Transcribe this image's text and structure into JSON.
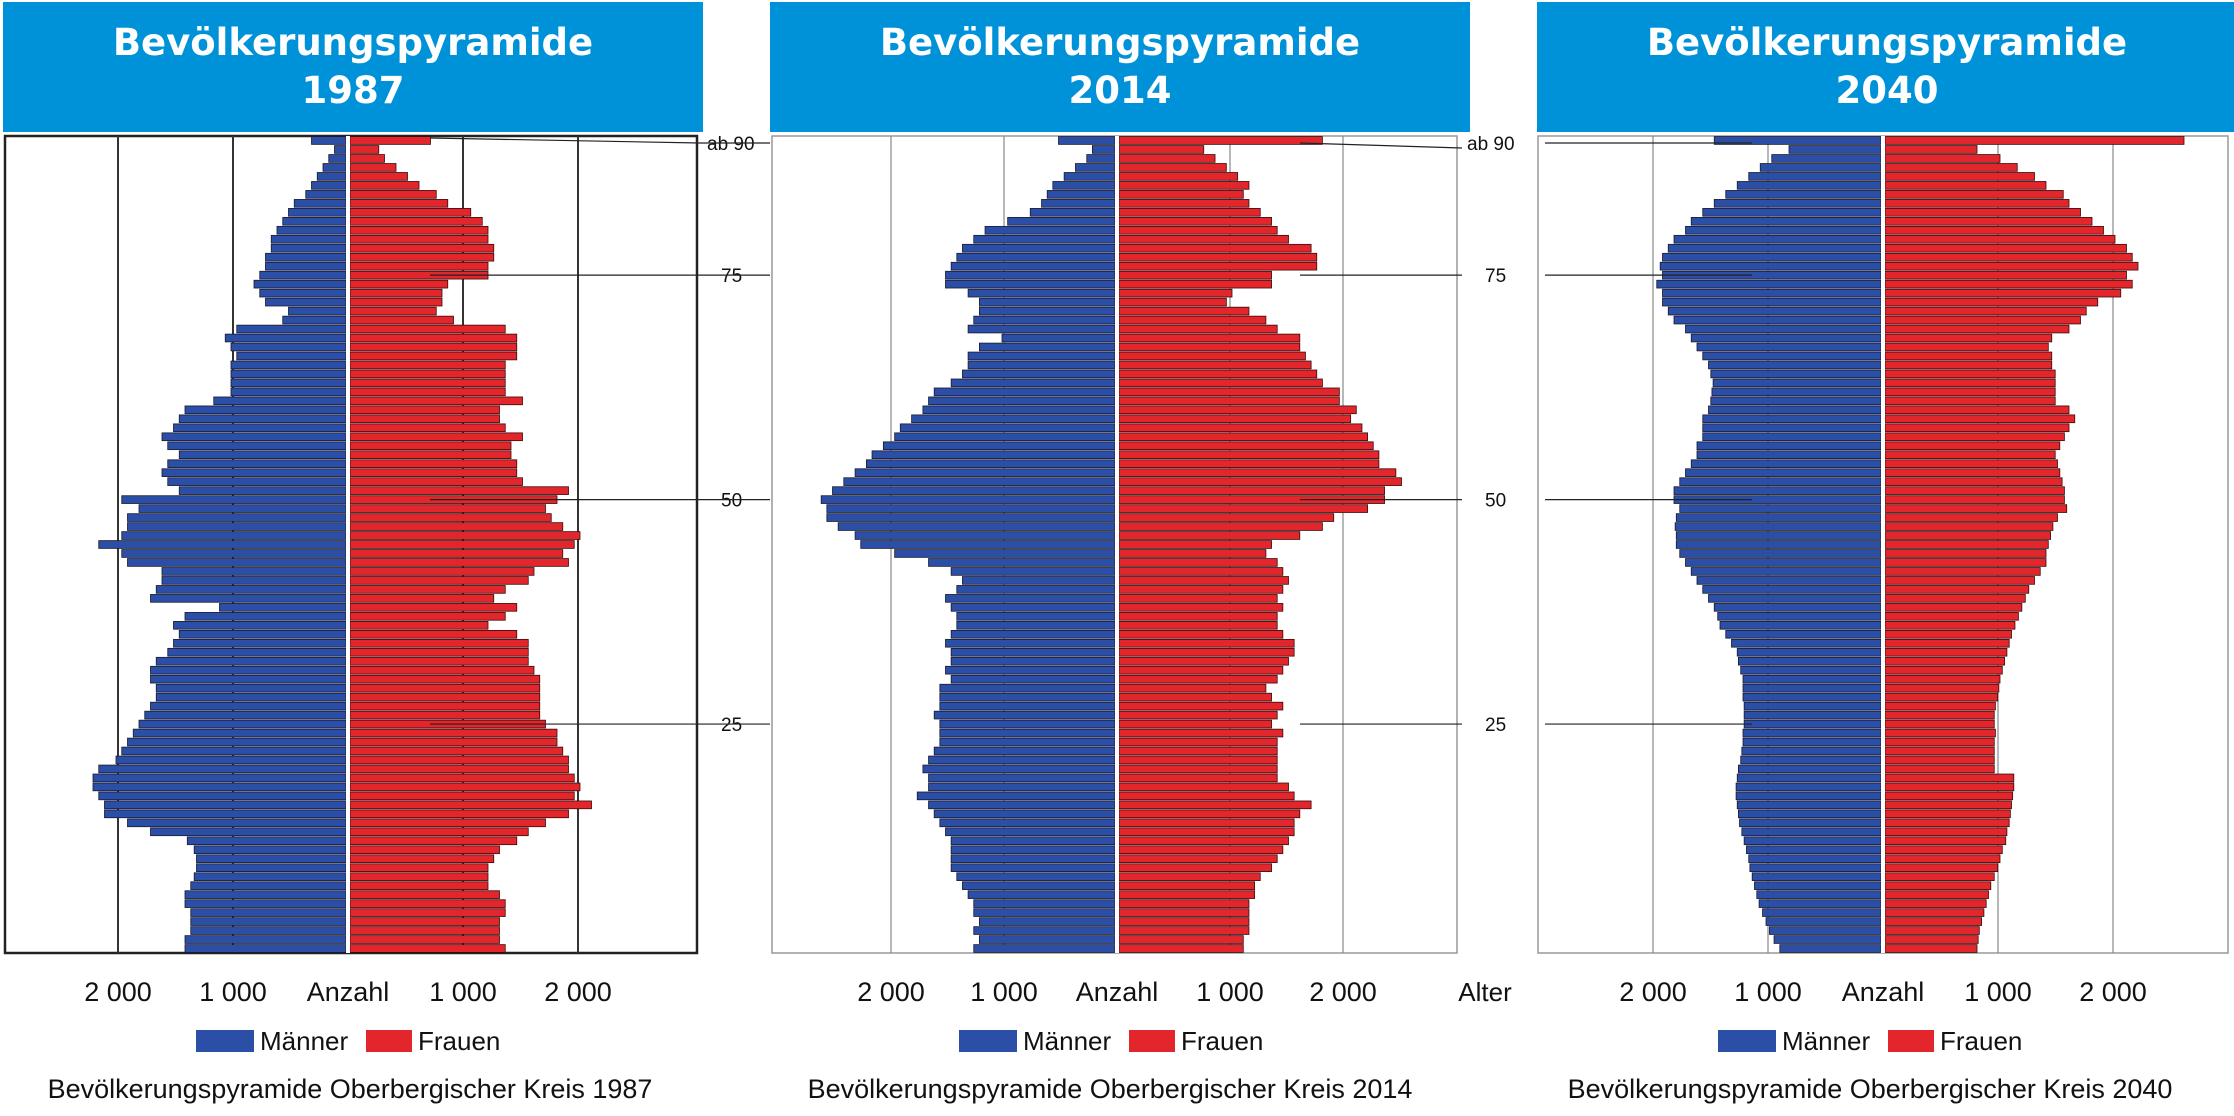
{
  "chart_data": [
    {
      "type": "bar",
      "title_line1": "Bevölkerungspyramide",
      "title_line2": "1987",
      "caption": "Bevölkerungspyramide Oberbergischer Kreis 1987",
      "count_label": "Anzahl",
      "age_label": "",
      "legend": [
        {
          "name": "Männer",
          "color": "#2b4ea6"
        },
        {
          "name": "Frauen",
          "color": "#e3262c"
        }
      ],
      "x_ticks": [
        "2 000",
        "1 000",
        "1 000",
        "2 000"
      ],
      "age_ticks": [
        {
          "age": 90,
          "label": "ab 90"
        },
        {
          "age": 75,
          "label": "75"
        },
        {
          "age": 50,
          "label": "50"
        },
        {
          "age": 25,
          "label": "25"
        }
      ],
      "xlim": [
        -3000,
        3000
      ],
      "ages": [
        0,
        1,
        2,
        3,
        4,
        5,
        6,
        7,
        8,
        9,
        10,
        11,
        12,
        13,
        14,
        15,
        16,
        17,
        18,
        19,
        20,
        21,
        22,
        23,
        24,
        25,
        26,
        27,
        28,
        29,
        30,
        31,
        32,
        33,
        34,
        35,
        36,
        37,
        38,
        39,
        40,
        41,
        42,
        43,
        44,
        45,
        46,
        47,
        48,
        49,
        50,
        51,
        52,
        53,
        54,
        55,
        56,
        57,
        58,
        59,
        60,
        61,
        62,
        63,
        64,
        65,
        66,
        67,
        68,
        69,
        70,
        71,
        72,
        73,
        74,
        75,
        76,
        77,
        78,
        79,
        80,
        81,
        82,
        83,
        84,
        85,
        86,
        87,
        88,
        89,
        90
      ],
      "series": [
        {
          "name": "Männer",
          "values": [
            1400,
            1400,
            1350,
            1350,
            1350,
            1400,
            1400,
            1350,
            1320,
            1300,
            1300,
            1320,
            1380,
            1700,
            1900,
            2100,
            2100,
            2150,
            2200,
            2200,
            2150,
            2000,
            1950,
            1900,
            1850,
            1800,
            1750,
            1700,
            1650,
            1650,
            1700,
            1700,
            1650,
            1550,
            1500,
            1450,
            1500,
            1400,
            1100,
            1700,
            1650,
            1600,
            1600,
            1900,
            1950,
            2150,
            1950,
            1900,
            1900,
            1800,
            1950,
            1450,
            1550,
            1600,
            1550,
            1450,
            1550,
            1600,
            1500,
            1450,
            1400,
            1150,
            1000,
            1000,
            1000,
            1000,
            950,
            1000,
            1050,
            950,
            550,
            500,
            700,
            750,
            800,
            750,
            700,
            700,
            650,
            650,
            600,
            550,
            500,
            450,
            350,
            300,
            250,
            200,
            150,
            100,
            300
          ]
        },
        {
          "name": "Frauen",
          "values": [
            1350,
            1300,
            1300,
            1300,
            1350,
            1350,
            1300,
            1200,
            1200,
            1200,
            1250,
            1300,
            1450,
            1550,
            1700,
            1900,
            2100,
            1950,
            2000,
            1950,
            1900,
            1900,
            1850,
            1800,
            1800,
            1700,
            1650,
            1650,
            1650,
            1650,
            1650,
            1600,
            1550,
            1550,
            1550,
            1450,
            1200,
            1350,
            1450,
            1250,
            1350,
            1550,
            1600,
            1900,
            1850,
            1950,
            2000,
            1850,
            1750,
            1700,
            1800,
            1900,
            1500,
            1450,
            1450,
            1400,
            1400,
            1500,
            1350,
            1300,
            1300,
            1500,
            1350,
            1350,
            1350,
            1350,
            1450,
            1450,
            1450,
            1350,
            900,
            750,
            800,
            800,
            850,
            1200,
            1200,
            1250,
            1250,
            1200,
            1200,
            1150,
            1050,
            850,
            750,
            600,
            500,
            400,
            300,
            250,
            700
          ]
        }
      ]
    },
    {
      "type": "bar",
      "title_line1": "Bevölkerungspyramide",
      "title_line2": "2014",
      "caption": "Bevölkerungspyramide Oberbergischer Kreis 2014",
      "count_label": "Anzahl",
      "age_label": "Alter",
      "legend": [
        {
          "name": "Männer",
          "color": "#2b4ea6"
        },
        {
          "name": "Frauen",
          "color": "#e3262c"
        }
      ],
      "x_ticks": [
        "2 000",
        "1 000",
        "1 000",
        "2 000"
      ],
      "age_ticks": [
        {
          "age": 90,
          "label": "ab 90"
        },
        {
          "age": 75,
          "label": "75"
        },
        {
          "age": 50,
          "label": "50"
        },
        {
          "age": 25,
          "label": "25"
        }
      ],
      "xlim": [
        -3000,
        3000
      ],
      "ages": [
        0,
        1,
        2,
        3,
        4,
        5,
        6,
        7,
        8,
        9,
        10,
        11,
        12,
        13,
        14,
        15,
        16,
        17,
        18,
        19,
        20,
        21,
        22,
        23,
        24,
        25,
        26,
        27,
        28,
        29,
        30,
        31,
        32,
        33,
        34,
        35,
        36,
        37,
        38,
        39,
        40,
        41,
        42,
        43,
        44,
        45,
        46,
        47,
        48,
        49,
        50,
        51,
        52,
        53,
        54,
        55,
        56,
        57,
        58,
        59,
        60,
        61,
        62,
        63,
        64,
        65,
        66,
        67,
        68,
        69,
        70,
        71,
        72,
        73,
        74,
        75,
        76,
        77,
        78,
        79,
        80,
        81,
        82,
        83,
        84,
        85,
        86,
        87,
        88,
        89,
        90
      ],
      "series": [
        {
          "name": "Männer",
          "values": [
            1250,
            1200,
            1250,
            1200,
            1250,
            1250,
            1300,
            1350,
            1400,
            1450,
            1450,
            1450,
            1450,
            1500,
            1550,
            1600,
            1650,
            1750,
            1650,
            1650,
            1700,
            1650,
            1600,
            1550,
            1550,
            1550,
            1600,
            1550,
            1550,
            1550,
            1450,
            1500,
            1450,
            1450,
            1500,
            1450,
            1400,
            1400,
            1450,
            1500,
            1400,
            1350,
            1450,
            1650,
            1950,
            2250,
            2300,
            2450,
            2550,
            2550,
            2600,
            2500,
            2400,
            2300,
            2200,
            2150,
            2050,
            1950,
            1900,
            1800,
            1700,
            1650,
            1600,
            1450,
            1350,
            1300,
            1300,
            1200,
            1000,
            1300,
            1250,
            1200,
            1200,
            1300,
            1500,
            1500,
            1450,
            1400,
            1350,
            1250,
            1150,
            950,
            750,
            650,
            600,
            550,
            450,
            350,
            250,
            200,
            500
          ]
        },
        {
          "name": "Frauen",
          "values": [
            1100,
            1100,
            1150,
            1150,
            1150,
            1150,
            1200,
            1200,
            1250,
            1350,
            1400,
            1450,
            1500,
            1550,
            1550,
            1600,
            1700,
            1550,
            1500,
            1400,
            1400,
            1400,
            1400,
            1400,
            1450,
            1350,
            1400,
            1450,
            1350,
            1300,
            1400,
            1450,
            1500,
            1550,
            1550,
            1450,
            1400,
            1400,
            1450,
            1400,
            1450,
            1500,
            1450,
            1400,
            1300,
            1350,
            1600,
            1800,
            1900,
            2200,
            2350,
            2350,
            2500,
            2450,
            2300,
            2300,
            2250,
            2200,
            2150,
            2050,
            2100,
            1950,
            1950,
            1800,
            1750,
            1700,
            1650,
            1600,
            1600,
            1400,
            1300,
            1150,
            950,
            1000,
            1350,
            1350,
            1750,
            1750,
            1700,
            1500,
            1400,
            1350,
            1250,
            1150,
            1100,
            1150,
            1050,
            950,
            850,
            750,
            1800
          ]
        }
      ]
    },
    {
      "type": "bar",
      "title_line1": "Bevölkerungspyramide",
      "title_line2": "2040",
      "caption": "Bevölkerungspyramide Oberbergischer Kreis 2040",
      "count_label": "Anzahl",
      "age_label": "",
      "legend": [
        {
          "name": "Männer",
          "color": "#2b4ea6"
        },
        {
          "name": "Frauen",
          "color": "#e3262c"
        }
      ],
      "x_ticks": [
        "2 000",
        "1 000",
        "1 000",
        "2 000"
      ],
      "age_ticks": [
        {
          "age": 90,
          "label": "ab 90"
        },
        {
          "age": 75,
          "label": "75"
        },
        {
          "age": 50,
          "label": "50"
        },
        {
          "age": 25,
          "label": "25"
        }
      ],
      "xlim": [
        -3000,
        3000
      ],
      "ages": [
        0,
        1,
        2,
        3,
        4,
        5,
        6,
        7,
        8,
        9,
        10,
        11,
        12,
        13,
        14,
        15,
        16,
        17,
        18,
        19,
        20,
        21,
        22,
        23,
        24,
        25,
        26,
        27,
        28,
        29,
        30,
        31,
        32,
        33,
        34,
        35,
        36,
        37,
        38,
        39,
        40,
        41,
        42,
        43,
        44,
        45,
        46,
        47,
        48,
        49,
        50,
        51,
        52,
        53,
        54,
        55,
        56,
        57,
        58,
        59,
        60,
        61,
        62,
        63,
        64,
        65,
        66,
        67,
        68,
        69,
        70,
        71,
        72,
        73,
        74,
        75,
        76,
        77,
        78,
        79,
        80,
        81,
        82,
        83,
        84,
        85,
        86,
        87,
        88,
        89,
        90
      ],
      "series": [
        {
          "name": "Männer",
          "values": [
            880,
            930,
            970,
            1000,
            1030,
            1060,
            1080,
            1100,
            1120,
            1140,
            1150,
            1170,
            1190,
            1210,
            1230,
            1240,
            1250,
            1260,
            1260,
            1250,
            1240,
            1220,
            1210,
            1200,
            1200,
            1190,
            1190,
            1190,
            1200,
            1200,
            1200,
            1220,
            1240,
            1250,
            1300,
            1350,
            1400,
            1420,
            1450,
            1500,
            1550,
            1600,
            1650,
            1700,
            1750,
            1780,
            1780,
            1790,
            1780,
            1750,
            1800,
            1800,
            1750,
            1700,
            1650,
            1600,
            1600,
            1550,
            1550,
            1550,
            1500,
            1480,
            1470,
            1460,
            1480,
            1500,
            1550,
            1600,
            1650,
            1700,
            1800,
            1850,
            1900,
            1900,
            1950,
            1900,
            1920,
            1900,
            1850,
            1800,
            1700,
            1650,
            1550,
            1450,
            1350,
            1250,
            1150,
            1050,
            950,
            800,
            1450
          ]
        },
        {
          "name": "Frauen",
          "values": [
            800,
            810,
            820,
            840,
            860,
            880,
            900,
            920,
            950,
            980,
            1000,
            1020,
            1050,
            1060,
            1080,
            1090,
            1100,
            1110,
            1120,
            1120,
            950,
            950,
            950,
            950,
            960,
            950,
            950,
            960,
            980,
            990,
            1000,
            1020,
            1040,
            1060,
            1080,
            1100,
            1130,
            1160,
            1190,
            1220,
            1250,
            1300,
            1350,
            1400,
            1400,
            1420,
            1440,
            1460,
            1500,
            1580,
            1560,
            1560,
            1540,
            1520,
            1500,
            1480,
            1520,
            1560,
            1600,
            1650,
            1600,
            1480,
            1480,
            1480,
            1480,
            1450,
            1450,
            1420,
            1450,
            1600,
            1700,
            1750,
            1850,
            2050,
            2150,
            2100,
            2200,
            2150,
            2100,
            2000,
            1900,
            1800,
            1700,
            1600,
            1550,
            1400,
            1300,
            1150,
            1000,
            800,
            2600
          ]
        }
      ]
    }
  ]
}
